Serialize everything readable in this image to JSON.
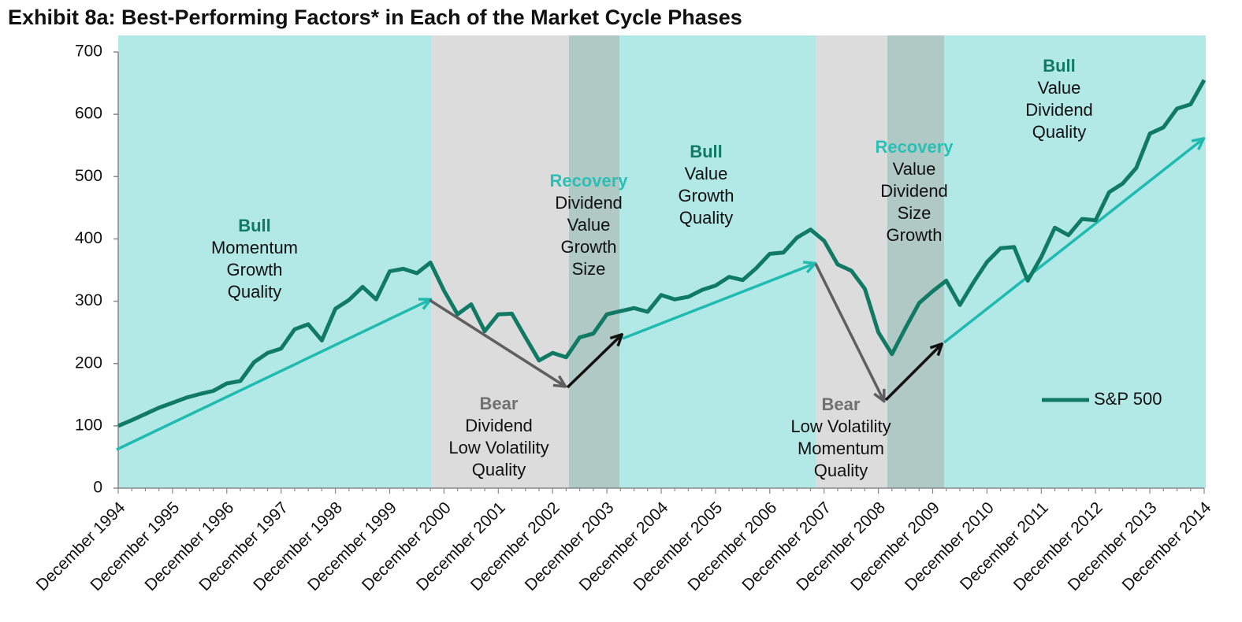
{
  "chart_data": {
    "type": "line",
    "title": "Exhibit 8a: Best-Performing Factors* in Each of the Market Cycle Phases",
    "categories": [
      "December 1994",
      null,
      null,
      null,
      "December 1995",
      null,
      null,
      null,
      "December 1996",
      null,
      null,
      null,
      "December 1997",
      null,
      null,
      null,
      "December 1998",
      null,
      null,
      null,
      "December 1999",
      null,
      null,
      null,
      "December 2000",
      null,
      null,
      null,
      "December 2001",
      null,
      null,
      null,
      "December 2002",
      null,
      null,
      null,
      "December 2003",
      null,
      null,
      null,
      "December 2004",
      null,
      null,
      null,
      "December 2005",
      null,
      null,
      null,
      "December 2006",
      null,
      null,
      null,
      "December 2007",
      null,
      null,
      null,
      "December 2008",
      null,
      null,
      null,
      "December 2009",
      null,
      null,
      null,
      "December 2010",
      null,
      null,
      null,
      "December 2011",
      null,
      null,
      null,
      "December 2012",
      null,
      null,
      null,
      "December 2013",
      null,
      null,
      null,
      "December 2014"
    ],
    "series": [
      {
        "name": "S&P 500",
        "color": "#117a65",
        "values": [
          100,
          109,
          119,
          129,
          137,
          145,
          151,
          156,
          168,
          172,
          202,
          217,
          224,
          255,
          263,
          237,
          288,
          302,
          323,
          303,
          348,
          352,
          345,
          362,
          317,
          279,
          295,
          252,
          279,
          280,
          242,
          205,
          217,
          210,
          242,
          248,
          279,
          284,
          289,
          283,
          310,
          303,
          307,
          318,
          325,
          339,
          334,
          353,
          376,
          378,
          402,
          415,
          397,
          359,
          349,
          320,
          250,
          215,
          257,
          297,
          316,
          333,
          294,
          330,
          363,
          385,
          387,
          333,
          371,
          418,
          406,
          432,
          430,
          475,
          489,
          514,
          569,
          579,
          609,
          616,
          655
        ]
      }
    ],
    "ylim": [
      0,
      700
    ],
    "yticks": [
      0,
      100,
      200,
      300,
      400,
      500,
      600,
      700
    ],
    "grid": false,
    "legend": "right",
    "phases": [
      {
        "name": "Bull",
        "factors": [
          "Momentum",
          "Growth",
          "Quality"
        ]
      },
      {
        "name": "Bear",
        "factors": [
          "Dividend",
          "Low Volatility",
          "Quality"
        ]
      },
      {
        "name": "Recovery",
        "factors": [
          "Dividend",
          "Value",
          "Growth",
          "Size"
        ]
      },
      {
        "name": "Bull",
        "factors": [
          "Value",
          "Growth",
          "Quality"
        ]
      },
      {
        "name": "Bear",
        "factors": [
          "Low Volatility",
          "Momentum",
          "Quality"
        ]
      },
      {
        "name": "Recovery",
        "factors": [
          "Value",
          "Dividend",
          "Size",
          "Growth"
        ]
      },
      {
        "name": "Bull",
        "factors": [
          "Value",
          "Dividend",
          "Quality"
        ]
      }
    ]
  }
}
